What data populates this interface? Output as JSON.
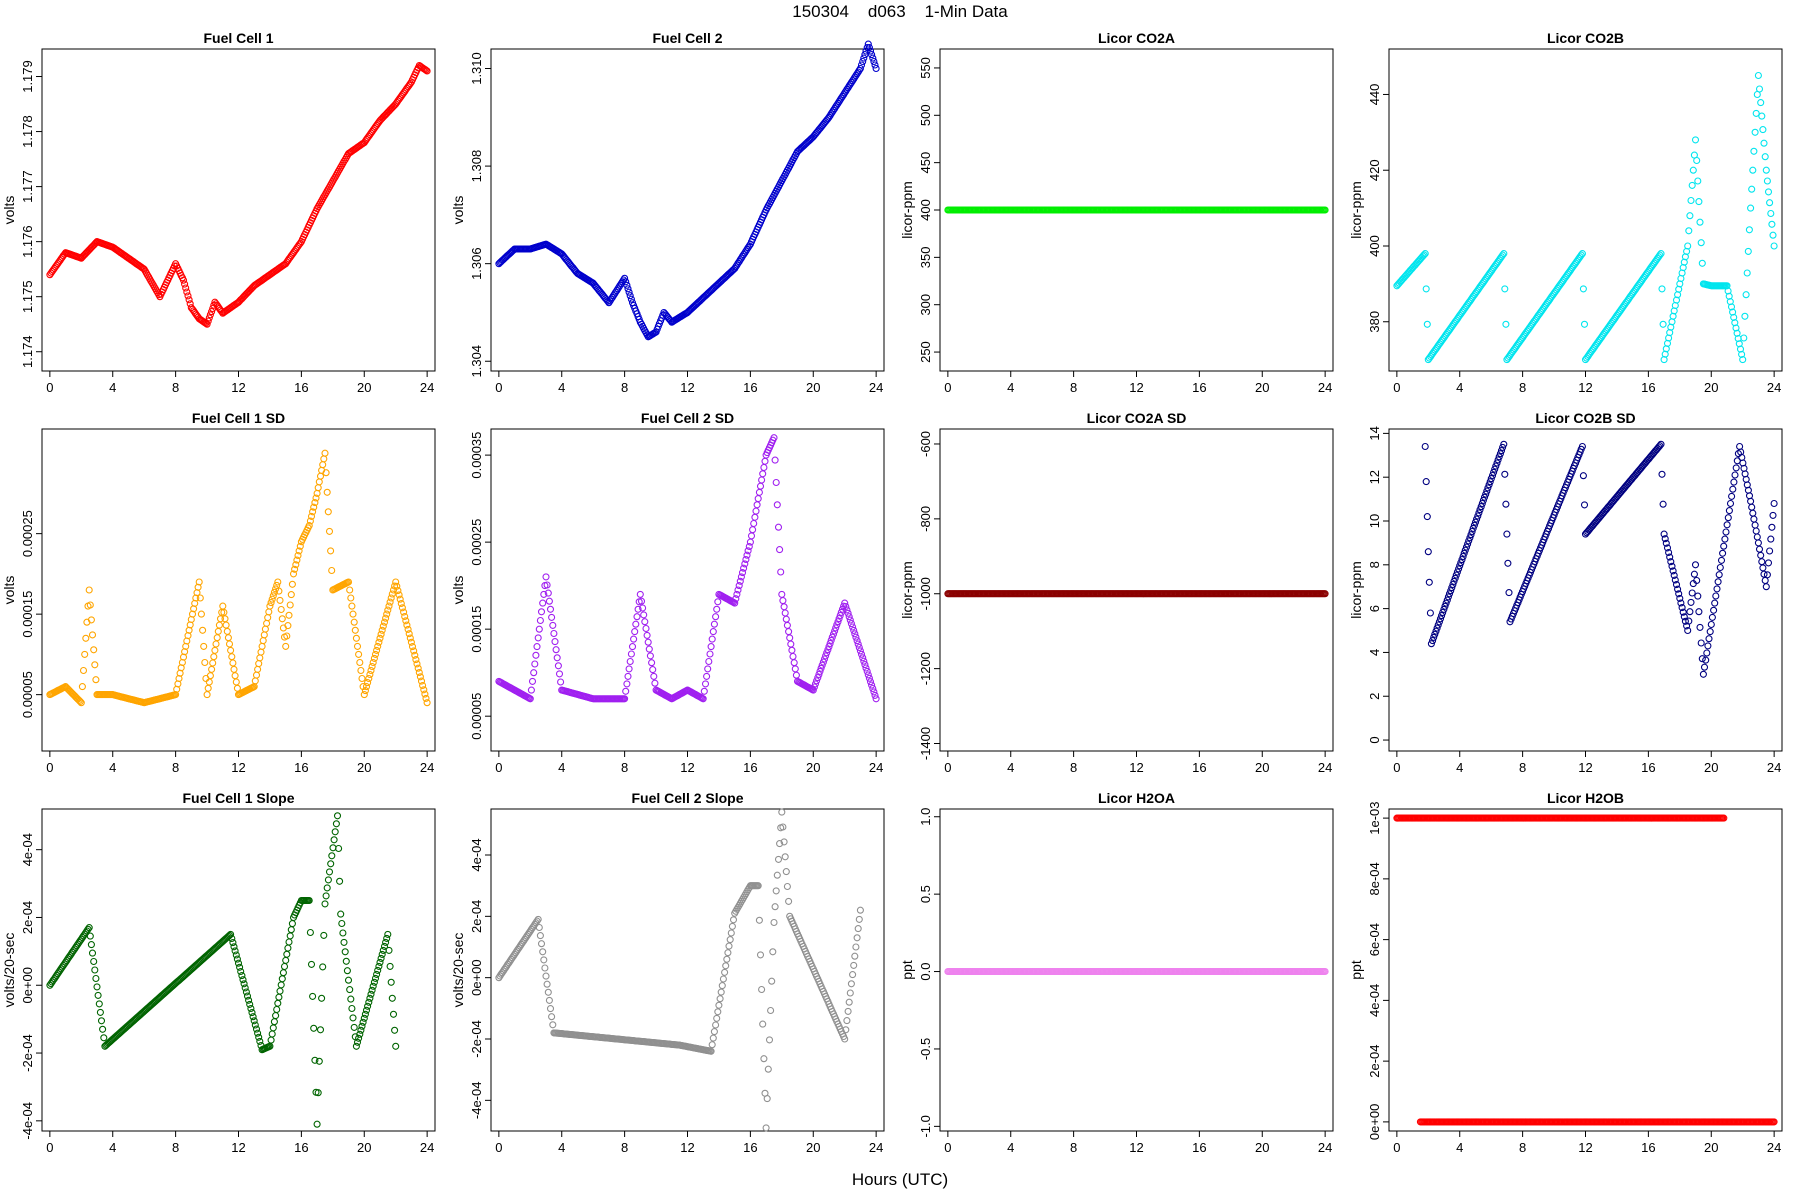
{
  "figure": {
    "title": "150304    d063    1-Min Data",
    "xlabel": "Hours (UTC)"
  },
  "chart_data": [
    {
      "type": "scatter",
      "title": "Fuel Cell 1",
      "ylabel": "volts",
      "color": "#ff0000",
      "xlim": [
        -0.5,
        24.5
      ],
      "ylim": [
        1.17365,
        1.1795
      ],
      "yticks": [
        1.174,
        1.175,
        1.176,
        1.177,
        1.178,
        1.179
      ],
      "ytick_labels": [
        "1.174",
        "1.175",
        "1.176",
        "1.177",
        "1.178",
        "1.179"
      ],
      "series": [
        {
          "x": [
            0,
            1,
            2,
            3,
            4,
            5,
            6,
            7,
            8,
            8.5,
            9,
            9.5,
            10,
            10.5,
            11,
            12,
            13,
            14,
            15,
            16,
            17,
            18,
            19,
            20,
            21,
            22,
            23,
            23.5,
            24
          ],
          "y": [
            1.1754,
            1.1758,
            1.1757,
            1.176,
            1.1759,
            1.1757,
            1.1755,
            1.175,
            1.1756,
            1.1753,
            1.1748,
            1.1746,
            1.1745,
            1.1749,
            1.1747,
            1.1749,
            1.1752,
            1.1754,
            1.1756,
            1.176,
            1.1766,
            1.1771,
            1.1776,
            1.1778,
            1.1782,
            1.1785,
            1.1789,
            1.1792,
            1.1791
          ]
        }
      ]
    },
    {
      "type": "scatter",
      "title": "Fuel Cell 2",
      "ylabel": "volts",
      "color": "#0000cc",
      "xlim": [
        -0.5,
        24.5
      ],
      "ylim": [
        1.3038,
        1.3104
      ],
      "yticks": [
        1.304,
        1.306,
        1.308,
        1.31
      ],
      "ytick_labels": [
        "1.304",
        "1.306",
        "1.308",
        "1.310"
      ],
      "series": [
        {
          "x": [
            0,
            1,
            2,
            3,
            4,
            5,
            6,
            7,
            8,
            8.5,
            9,
            9.5,
            10,
            10.5,
            11,
            12,
            13,
            14,
            15,
            16,
            17,
            18,
            19,
            20,
            21,
            22,
            23,
            23.5,
            24
          ],
          "y": [
            1.306,
            1.3063,
            1.3063,
            1.3064,
            1.3062,
            1.3058,
            1.3056,
            1.3052,
            1.3057,
            1.3052,
            1.3048,
            1.3045,
            1.3046,
            1.305,
            1.3048,
            1.305,
            1.3053,
            1.3056,
            1.3059,
            1.3064,
            1.3071,
            1.3077,
            1.3083,
            1.3086,
            1.309,
            1.3095,
            1.31,
            1.3105,
            1.31
          ]
        }
      ]
    },
    {
      "type": "scatter",
      "title": "Licor CO2A",
      "ylabel": "licor-ppm",
      "color": "#00ee00",
      "xlim": [
        -0.5,
        24.5
      ],
      "ylim": [
        230,
        570
      ],
      "yticks": [
        250,
        300,
        350,
        400,
        450,
        500,
        550
      ],
      "ytick_labels": [
        "250",
        "300",
        "350",
        "400",
        "450",
        "500",
        "550"
      ],
      "series": [
        {
          "x": [
            0,
            24
          ],
          "y": [
            400,
            400
          ]
        }
      ]
    },
    {
      "type": "scatter",
      "title": "Licor CO2B",
      "ylabel": "licor-ppm",
      "color": "#00e5ee",
      "xlim": [
        -0.5,
        24.5
      ],
      "ylim": [
        367,
        452
      ],
      "yticks": [
        380,
        400,
        420,
        440
      ],
      "ytick_labels": [
        "380",
        "400",
        "420",
        "440"
      ],
      "series": [
        {
          "x": [
            0,
            1.8,
            2,
            6.8,
            7,
            11.8,
            12,
            16.8,
            17,
            18.5,
            19,
            19.5,
            20,
            21,
            22,
            22.5,
            23,
            23.5,
            24
          ],
          "y": [
            389.5,
            398,
            370,
            398,
            370,
            398,
            370,
            398,
            370,
            400,
            428,
            390,
            389.5,
            389.5,
            370,
            410,
            445,
            420,
            400
          ]
        }
      ]
    },
    {
      "type": "scatter",
      "title": "Fuel Cell 1 SD",
      "ylabel": "volts",
      "color": "#ffa500",
      "xlim": [
        -0.5,
        24.5
      ],
      "ylim": [
        -2e-05,
        0.00038
      ],
      "yticks": [
        5e-05,
        0.00015,
        0.00025
      ],
      "ytick_labels": [
        "0.00005",
        "0.00015",
        "0.00025"
      ],
      "series": [
        {
          "x": [
            0,
            1,
            2,
            2.5,
            3,
            4,
            6,
            8,
            9.5,
            10,
            11,
            12,
            13,
            14,
            14.5,
            15,
            15.5,
            16,
            16.5,
            17,
            17.5,
            18,
            19,
            20,
            22,
            24
          ],
          "y": [
            5e-05,
            6e-05,
            4e-05,
            0.00018,
            5e-05,
            5e-05,
            4e-05,
            5e-05,
            0.00019,
            5e-05,
            0.00016,
            5e-05,
            6e-05,
            0.00016,
            0.00019,
            0.00011,
            0.0002,
            0.00024,
            0.00026,
            0.0003,
            0.00035,
            0.00018,
            0.00019,
            5e-05,
            0.00019,
            4e-05
          ]
        }
      ]
    },
    {
      "type": "scatter",
      "title": "Fuel Cell 2 SD",
      "ylabel": "volts",
      "color": "#a020f0",
      "xlim": [
        -0.5,
        24.5
      ],
      "ylim": [
        1e-05,
        0.00038
      ],
      "yticks": [
        5e-05,
        0.00015,
        0.00025,
        0.00035
      ],
      "ytick_labels": [
        "0.00005",
        "0.00015",
        "0.00025",
        "0.00035"
      ],
      "series": [
        {
          "x": [
            0,
            1,
            2,
            3,
            4,
            6,
            8,
            9,
            10,
            11,
            12,
            13,
            14,
            15,
            16,
            16.5,
            17,
            17.5,
            18,
            19,
            20,
            22,
            24
          ],
          "y": [
            9e-05,
            8e-05,
            7e-05,
            0.00021,
            8e-05,
            7e-05,
            7e-05,
            0.00019,
            8e-05,
            7e-05,
            8e-05,
            7e-05,
            0.00019,
            0.00018,
            0.00025,
            0.0003,
            0.00035,
            0.00037,
            0.00019,
            9e-05,
            8e-05,
            0.00018,
            7e-05
          ]
        }
      ]
    },
    {
      "type": "scatter",
      "title": "Licor CO2A SD",
      "ylabel": "licor-ppm",
      "color": "#8b0000",
      "xlim": [
        -0.5,
        24.5
      ],
      "ylim": [
        -1420,
        -560
      ],
      "yticks": [
        -1400,
        -1200,
        -1000,
        -800,
        -600
      ],
      "ytick_labels": [
        "-1400",
        "-1200",
        "-1000",
        "-800",
        "-600"
      ],
      "series": [
        {
          "x": [
            0,
            24
          ],
          "y": [
            -1000,
            -1000
          ]
        }
      ]
    },
    {
      "type": "scatter",
      "title": "Licor CO2B SD",
      "ylabel": "licor-ppm",
      "color": "#000080",
      "xlim": [
        -0.5,
        24.5
      ],
      "ylim": [
        -0.5,
        14.2
      ],
      "yticks": [
        0,
        2,
        4,
        6,
        8,
        10,
        12,
        14
      ],
      "ytick_labels": [
        "0",
        "2",
        "4",
        "6",
        "8",
        "10",
        "12",
        "14"
      ],
      "series": [
        {
          "x": [
            1.8,
            2,
            2.2,
            6.8,
            7,
            7.2,
            11.8,
            12,
            16.8,
            17,
            18.5,
            19,
            19.5,
            21.8,
            22.5,
            23,
            23.5,
            24
          ],
          "y": [
            13.4,
            8.6,
            4.4,
            13.5,
            9.4,
            5.4,
            13.4,
            9.4,
            13.5,
            9.4,
            5,
            8,
            3,
            13.4,
            10.9,
            9,
            7,
            10.8
          ]
        }
      ]
    },
    {
      "type": "scatter",
      "title": "Fuel Cell 1 Slope",
      "ylabel": "volts/20-sec",
      "color": "#006400",
      "xlim": [
        -0.5,
        24.5
      ],
      "ylim": [
        -0.00043,
        0.00052
      ],
      "yticks": [
        -0.0004,
        -0.0002,
        0,
        0.0002,
        0.0004
      ],
      "ytick_labels": [
        "-4e-04",
        "-2e-04",
        "0e+00",
        "2e-04",
        "4e-04"
      ],
      "series": [
        {
          "x": [
            0,
            2.5,
            3.5,
            11.5,
            13.5,
            14,
            15.5,
            16,
            16.5,
            17,
            17.5,
            18.3,
            18.5,
            19.5,
            21.5,
            22
          ],
          "y": [
            0,
            0.00017,
            -0.00018,
            0.00015,
            -0.00019,
            -0.00018,
            0.0002,
            0.00025,
            0.00025,
            -0.00041,
            0.00024,
            0.0005,
            0.00021,
            -0.00018,
            0.00015,
            -0.00018
          ]
        }
      ]
    },
    {
      "type": "scatter",
      "title": "Fuel Cell 2 Slope",
      "ylabel": "volts/20-sec",
      "color": "#909090",
      "xlim": [
        -0.5,
        24.5
      ],
      "ylim": [
        -0.0005,
        0.00055
      ],
      "yticks": [
        -0.0004,
        -0.0002,
        0,
        0.0002,
        0.0004
      ],
      "ytick_labels": [
        "-4e-04",
        "-2e-04",
        "0e+00",
        "2e-04",
        "4e-04"
      ],
      "series": [
        {
          "x": [
            0,
            2.5,
            3.5,
            11.5,
            13.5,
            15,
            16,
            16.5,
            17,
            17.5,
            18,
            18.5,
            22,
            23
          ],
          "y": [
            0,
            0.00019,
            -0.00018,
            -0.00022,
            -0.00024,
            0.00021,
            0.0003,
            0.0003,
            -0.00049,
            0.00018,
            0.00054,
            0.0002,
            -0.0002,
            0.00022
          ]
        }
      ]
    },
    {
      "type": "scatter",
      "title": "Licor H2OA",
      "ylabel": "ppt",
      "color": "#ee82ee",
      "xlim": [
        -0.5,
        24.5
      ],
      "ylim": [
        -1.03,
        1.05
      ],
      "yticks": [
        -1,
        -0.5,
        0,
        0.5,
        1
      ],
      "ytick_labels": [
        "-1.0",
        "-0.5",
        "0.0",
        "0.5",
        "1.0"
      ],
      "series": [
        {
          "x": [
            0,
            24
          ],
          "y": [
            0,
            0
          ]
        }
      ]
    },
    {
      "type": "scatter",
      "title": "Licor H2OB",
      "ylabel": "ppt",
      "color": "#ff0000",
      "xlim": [
        -0.5,
        24.5
      ],
      "ylim": [
        -3e-05,
        0.00103
      ],
      "yticks": [
        0,
        0.0002,
        0.0004,
        0.0006,
        0.0008,
        0.001
      ],
      "ytick_labels": [
        "0e+00",
        "2e-04",
        "4e-04",
        "6e-04",
        "8e-04",
        "1e-03"
      ],
      "series": [
        {
          "x": [
            0,
            14,
            17,
            18.5,
            20.8
          ],
          "y": [
            0.001,
            0.001,
            0.001,
            0.001,
            0.001
          ]
        },
        {
          "x": [
            1.5,
            4,
            8,
            12,
            16,
            20,
            24
          ],
          "y": [
            0,
            0,
            0,
            0,
            0,
            0,
            0
          ]
        }
      ]
    }
  ],
  "x_axis": {
    "ticks": [
      0,
      4,
      8,
      12,
      16,
      20,
      24
    ],
    "tick_labels": [
      "0",
      "4",
      "8",
      "12",
      "16",
      "20",
      "24"
    ]
  }
}
